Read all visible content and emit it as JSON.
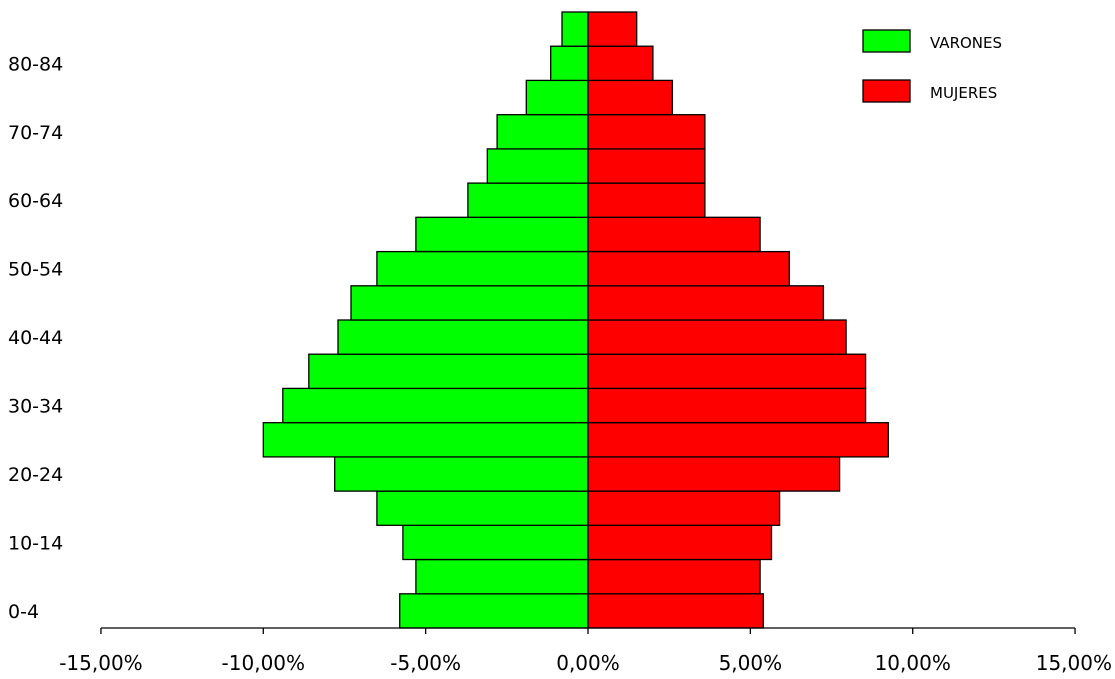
{
  "chart_data": {
    "type": "bar",
    "orientation": "horizontal",
    "title": "",
    "xlabel": "",
    "ylabel": "",
    "xlim": [
      -15,
      15
    ],
    "x_ticks": [
      -15,
      -10,
      -5,
      0,
      5,
      10,
      15
    ],
    "x_tick_labels": [
      "-15,00%",
      "-10,00%",
      "-5,00%",
      "0,00%",
      "5,00%",
      "10,00%",
      "15,00%"
    ],
    "categories": [
      "0-4",
      "5-9",
      "10-14",
      "15-19",
      "20-24",
      "25-29",
      "30-34",
      "35-39",
      "40-44",
      "45-49",
      "50-54",
      "55-59",
      "60-64",
      "65-69",
      "70-74",
      "75-79",
      "80-84",
      "85+"
    ],
    "category_labels_shown": [
      "0-4",
      "10-14",
      "20-24",
      "30-34",
      "40-44",
      "50-54",
      "60-64",
      "70-74",
      "80-84"
    ],
    "series": [
      {
        "name": "VARONES",
        "color": "#00ff00",
        "values": [
          -5.8,
          -5.3,
          -5.7,
          -6.5,
          -7.8,
          -10.0,
          -9.4,
          -8.6,
          -7.7,
          -7.3,
          -6.5,
          -5.3,
          -3.7,
          -3.1,
          -2.8,
          -1.9,
          -1.15,
          -0.8
        ]
      },
      {
        "name": "MUJERES",
        "color": "#ff0000",
        "values": [
          5.4,
          5.3,
          5.65,
          5.9,
          7.75,
          9.25,
          8.55,
          8.55,
          7.95,
          7.25,
          6.2,
          5.3,
          3.6,
          3.6,
          3.6,
          2.6,
          2.0,
          1.5
        ]
      }
    ],
    "legend_position": "top-right",
    "grid": false
  }
}
